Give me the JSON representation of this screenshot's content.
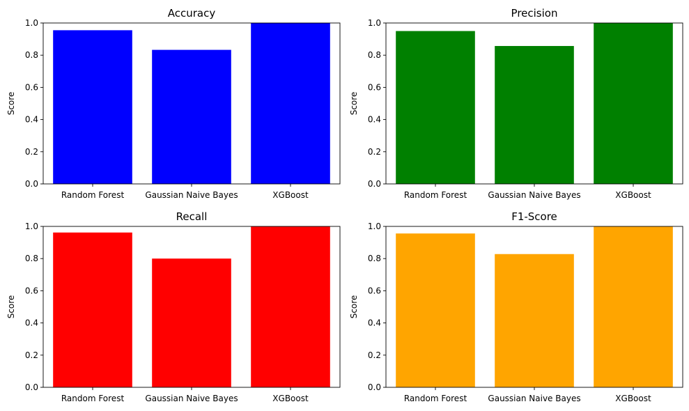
{
  "chart_data": [
    {
      "type": "bar",
      "title": "Accuracy",
      "ylabel": "Score",
      "xlabel": "",
      "categories": [
        "Random Forest",
        "Gaussian Naive Bayes",
        "XGBoost"
      ],
      "values": [
        0.955,
        0.833,
        1.0
      ],
      "color": "#0000ff",
      "ylim": [
        0,
        1
      ],
      "yticks": [
        "0.0",
        "0.2",
        "0.4",
        "0.6",
        "0.8",
        "1.0"
      ],
      "grid": false
    },
    {
      "type": "bar",
      "title": "Precision",
      "ylabel": "Score",
      "xlabel": "",
      "categories": [
        "Random Forest",
        "Gaussian Naive Bayes",
        "XGBoost"
      ],
      "values": [
        0.95,
        0.857,
        1.0
      ],
      "color": "#008000",
      "ylim": [
        0,
        1
      ],
      "yticks": [
        "0.0",
        "0.2",
        "0.4",
        "0.6",
        "0.8",
        "1.0"
      ],
      "grid": false
    },
    {
      "type": "bar",
      "title": "Recall",
      "ylabel": "Score",
      "xlabel": "",
      "categories": [
        "Random Forest",
        "Gaussian Naive Bayes",
        "XGBoost"
      ],
      "values": [
        0.962,
        0.8,
        1.0
      ],
      "color": "#ff0000",
      "ylim": [
        0,
        1
      ],
      "yticks": [
        "0.0",
        "0.2",
        "0.4",
        "0.6",
        "0.8",
        "1.0"
      ],
      "grid": false
    },
    {
      "type": "bar",
      "title": "F1-Score",
      "ylabel": "Score",
      "xlabel": "",
      "categories": [
        "Random Forest",
        "Gaussian Naive Bayes",
        "XGBoost"
      ],
      "values": [
        0.956,
        0.828,
        1.0
      ],
      "color": "#ffa500",
      "ylim": [
        0,
        1
      ],
      "yticks": [
        "0.0",
        "0.2",
        "0.4",
        "0.6",
        "0.8",
        "1.0"
      ],
      "grid": false
    }
  ]
}
